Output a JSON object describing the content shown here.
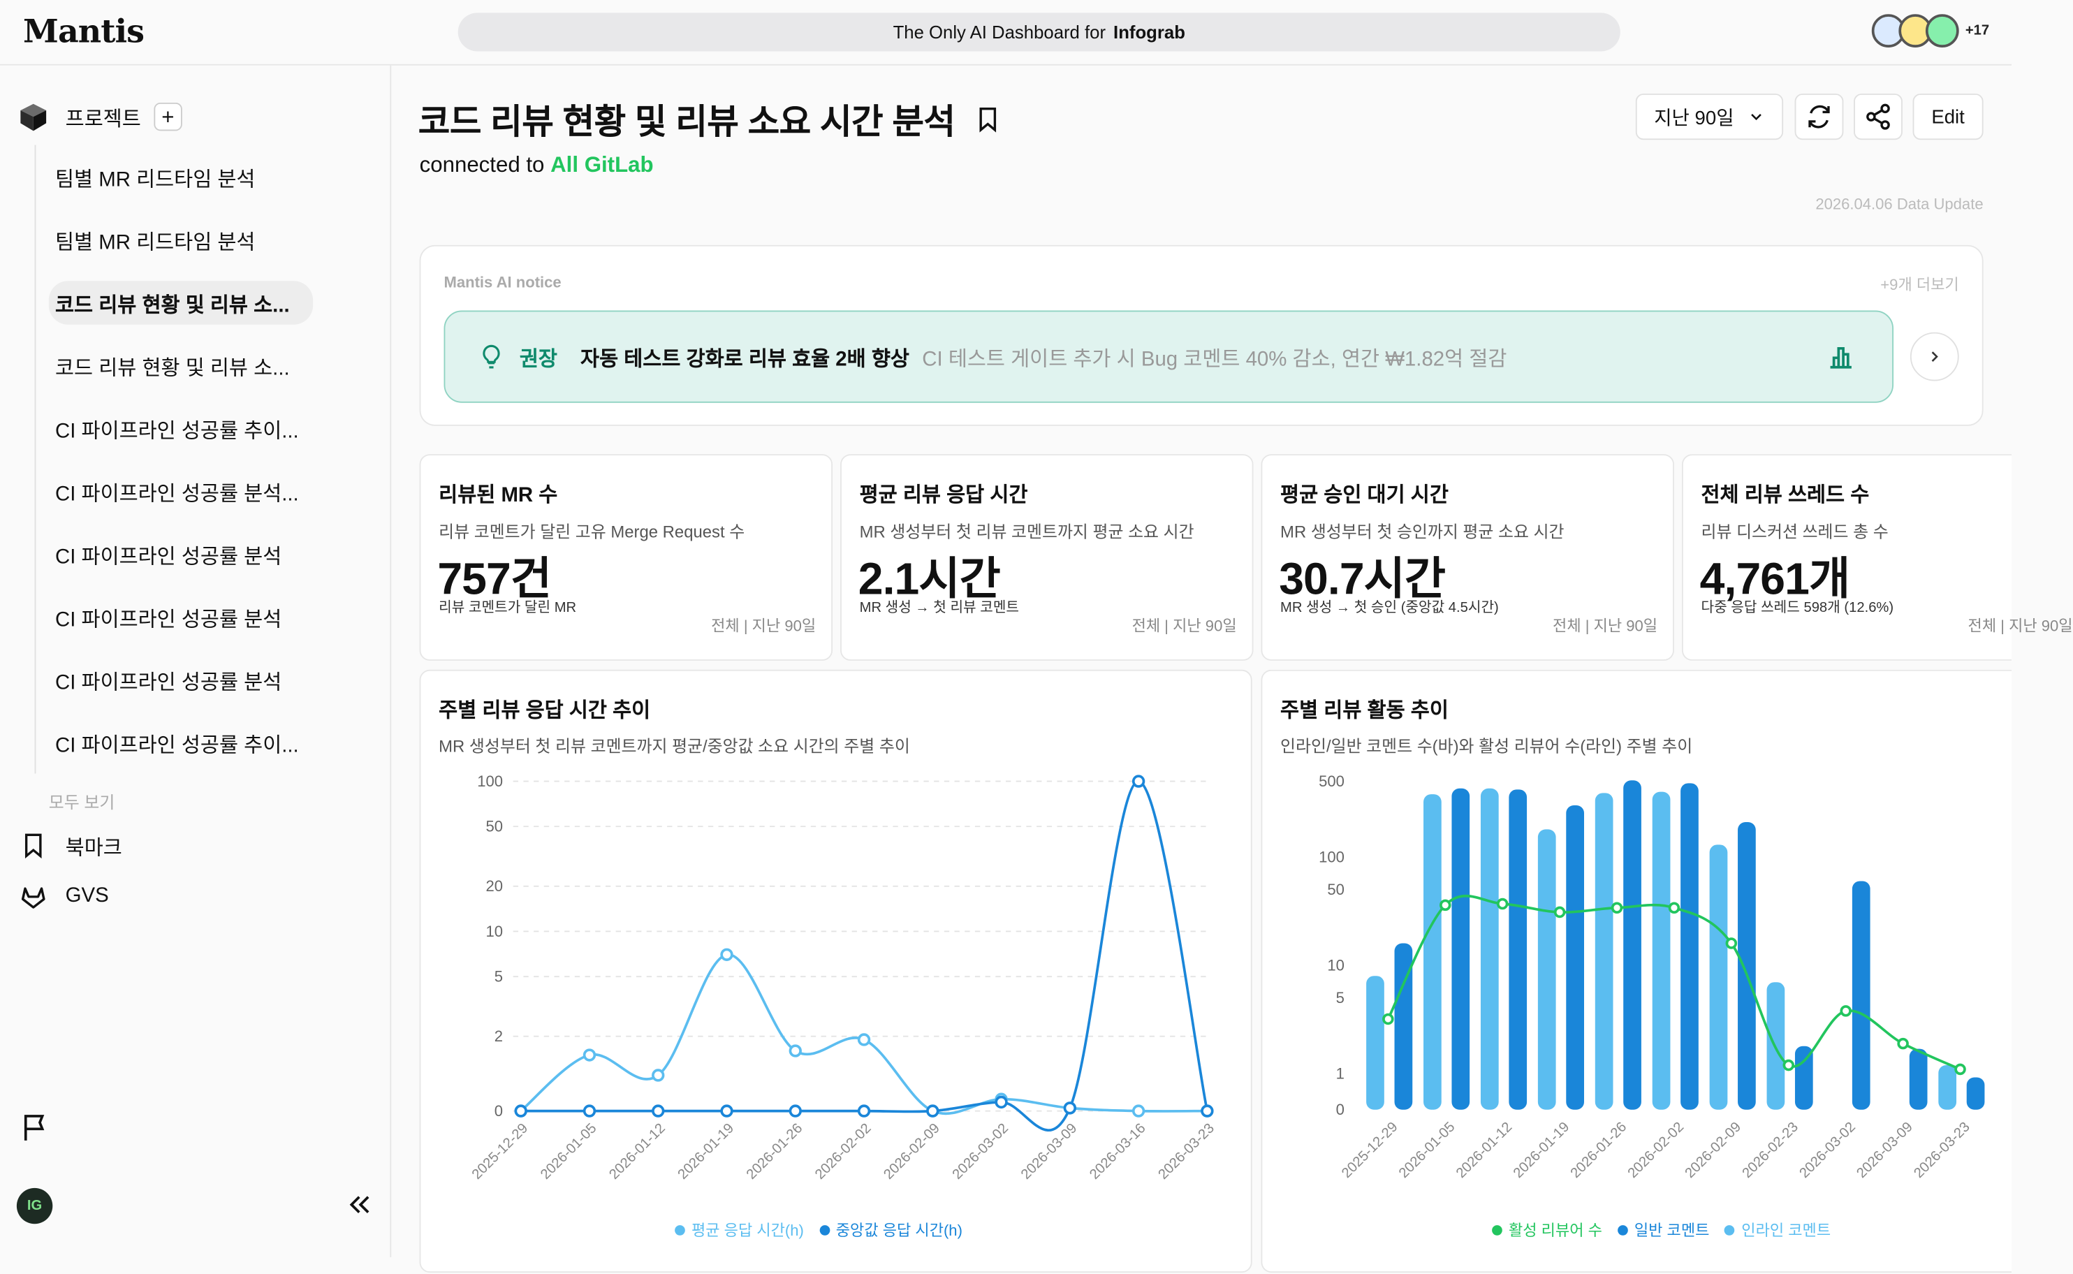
{
  "header": {
    "logo": "Mantis",
    "banner_prefix": "The Only AI Dashboard for",
    "banner_brand": "Infograb",
    "avatar_extra": "+17",
    "avatar_colors": [
      "#dbeafe",
      "#fde68a",
      "#86efac"
    ]
  },
  "sidebar": {
    "projects_label": "프로젝트",
    "items": [
      {
        "label": "팀별 MR 리드타임 분석",
        "active": false
      },
      {
        "label": "팀별 MR 리드타임 분석",
        "active": false
      },
      {
        "label": "코드 리뷰 현황 및 리뷰 소...",
        "active": true
      },
      {
        "label": "코드 리뷰 현황 및 리뷰 소...",
        "active": false
      },
      {
        "label": "CI 파이프라인 성공률 추이...",
        "active": false
      },
      {
        "label": "CI 파이프라인 성공률 분석...",
        "active": false
      },
      {
        "label": "CI 파이프라인 성공률 분석",
        "active": false
      },
      {
        "label": "CI 파이프라인 성공률 분석",
        "active": false
      },
      {
        "label": "CI 파이프라인 성공률 분석",
        "active": false
      },
      {
        "label": "CI 파이프라인 성공률 추이...",
        "active": false
      }
    ],
    "see_all": "모두 보기",
    "bookmark_label": "북마크",
    "gvs_label": "GVS",
    "user_initials": "IG"
  },
  "page": {
    "title": "코드 리뷰 현황 및 리뷰 소요 시간 분석",
    "connected_prefix": "connected to",
    "connected_source": "All GitLab",
    "period": "지난 90일",
    "edit_label": "Edit",
    "updated": "2026.04.06 Data Update"
  },
  "notice": {
    "title": "Mantis AI notice",
    "more": "+9개 더보기",
    "tag": "권장",
    "headline": "자동 테스트 강화로 리뷰 효율 2배 향상",
    "description": "CI 테스트 게이트 추가 시 Bug 코멘트 40% 감소, 연간 ₩1.82억 절감"
  },
  "kpis": [
    {
      "title": "리뷰된 MR 수",
      "sub": "리뷰 코멘트가 달린 고유 Merge Request 수",
      "value": "757건",
      "note": "리뷰 코멘트가 달린 MR",
      "scope": "전체 | 지난 90일"
    },
    {
      "title": "평균 리뷰 응답 시간",
      "sub": "MR 생성부터 첫 리뷰 코멘트까지 평균 소요 시간",
      "value": "2.1시간",
      "note": "MR 생성 → 첫 리뷰 코멘트",
      "scope": "전체 | 지난 90일"
    },
    {
      "title": "평균 승인 대기 시간",
      "sub": "MR 생성부터 첫 승인까지 평균 소요 시간",
      "value": "30.7시간",
      "note": "MR 생성 → 첫 승인 (중앙값 4.5시간)",
      "scope": "전체 | 지난 90일"
    },
    {
      "title": "전체 리뷰 쓰레드 수",
      "sub": "리뷰 디스커션 쓰레드 총 수",
      "value": "4,761개",
      "note": "다중 응답 쓰레드 598개 (12.6%)",
      "scope": "전체 | 지난 90일"
    }
  ],
  "charts": {
    "left": {
      "title": "주별 리뷰 응답 시간 추이",
      "sub": "MR 생성부터 첫 리뷰 코멘트까지 평균/중앙값 소요 시간의 주별 추이"
    },
    "right": {
      "title": "주별 리뷰 활동 추이",
      "sub": "인라인/일반 코멘트 수(바)와 활성 리뷰어 수(라인) 주별 추이"
    }
  },
  "chart_data": [
    {
      "type": "line",
      "y_scale": "log",
      "yticks": [
        "0",
        "2",
        "5",
        "10",
        "20",
        "50",
        "100"
      ],
      "x": [
        "2025-12-29",
        "2026-01-05",
        "2026-01-12",
        "2026-01-19",
        "2026-01-26",
        "2026-02-02",
        "2026-02-09",
        "2026-03-02",
        "2026-03-09",
        "2026-03-16",
        "2026-03-23"
      ],
      "series": [
        {
          "name": "평균 응답 시간(h)",
          "color": "#5bbdf0",
          "values": [
            0,
            1.5,
            1.1,
            7,
            1.6,
            1.9,
            0,
            0.4,
            0.1,
            0,
            0
          ]
        },
        {
          "name": "중앙값 응답 시간(h)",
          "color": "#1a86d9",
          "values": [
            0,
            0,
            0,
            0,
            0,
            0,
            0,
            0.3,
            0.1,
            100,
            0
          ]
        }
      ]
    },
    {
      "type": "bar",
      "y_scale": "log",
      "yticks": [
        "0",
        "1",
        "5",
        "10",
        "50",
        "100",
        "500"
      ],
      "x": [
        "2025-12-29",
        "2026-01-05",
        "2026-01-12",
        "2026-01-19",
        "2026-01-26",
        "2026-02-02",
        "2026-02-09",
        "2026-02-23",
        "2026-03-02",
        "2026-03-09",
        "2026-03-23"
      ],
      "series": [
        {
          "name": "인라인 코멘트",
          "color": "#5bbdf0",
          "values": [
            8,
            380,
            430,
            180,
            390,
            400,
            130,
            7,
            0,
            0,
            1.2
          ]
        },
        {
          "name": "일반 코멘트",
          "color": "#1a86d9",
          "values": [
            16,
            430,
            420,
            300,
            510,
            480,
            210,
            1.8,
            60,
            1.7,
            0.9
          ]
        },
        {
          "name": "활성 리뷰어 수",
          "color": "#22c55e",
          "type": "line",
          "values": [
            3.2,
            36,
            37,
            31,
            34,
            34,
            16,
            1.2,
            3.8,
            1.9,
            1.1
          ]
        }
      ]
    }
  ]
}
